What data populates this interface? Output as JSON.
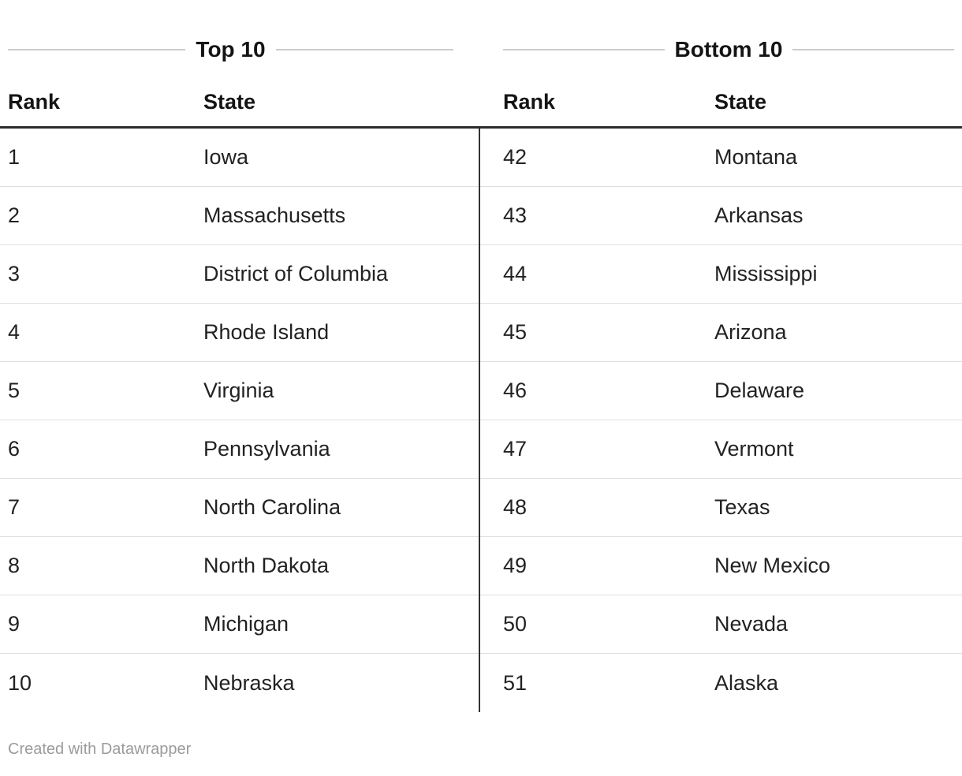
{
  "chart_data": {
    "type": "table",
    "tables": [
      {
        "title": "Top 10",
        "columns": [
          "Rank",
          "State"
        ],
        "rows": [
          [
            1,
            "Iowa"
          ],
          [
            2,
            "Massachusetts"
          ],
          [
            3,
            "District of Columbia"
          ],
          [
            4,
            "Rhode Island"
          ],
          [
            5,
            "Virginia"
          ],
          [
            6,
            "Pennsylvania"
          ],
          [
            7,
            "North Carolina"
          ],
          [
            8,
            "North Dakota"
          ],
          [
            9,
            "Michigan"
          ],
          [
            10,
            "Nebraska"
          ]
        ]
      },
      {
        "title": "Bottom 10",
        "columns": [
          "Rank",
          "State"
        ],
        "rows": [
          [
            42,
            "Montana"
          ],
          [
            43,
            "Arkansas"
          ],
          [
            44,
            "Mississippi"
          ],
          [
            45,
            "Arizona"
          ],
          [
            46,
            "Delaware"
          ],
          [
            47,
            "Vermont"
          ],
          [
            48,
            "Texas"
          ],
          [
            49,
            "New Mexico"
          ],
          [
            50,
            "Nevada"
          ],
          [
            51,
            "Alaska"
          ]
        ]
      }
    ]
  },
  "footer": {
    "credit": "Created with Datawrapper"
  }
}
